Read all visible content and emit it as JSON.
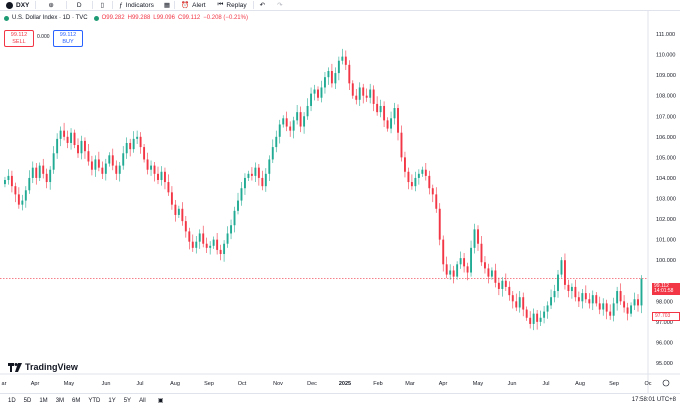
{
  "toolbar": {
    "symbol": "DXY",
    "interval": "D",
    "indicators": "Indicators",
    "alert": "Alert",
    "replay": "Replay"
  },
  "legend": {
    "title": "U.S. Dollar Index · 1D · TVC",
    "o": "O99.282",
    "h": "H99.288",
    "l": "L99.096",
    "c": "C99.112",
    "chg": "−0.208 (−0.21%)"
  },
  "trade": {
    "sell_price": "99.112",
    "sell_label": "SELL",
    "spread": "0.000",
    "buy_price": "99.112",
    "buy_label": "BUY"
  },
  "price_axis": [
    "111.000",
    "110.000",
    "109.000",
    "108.000",
    "107.000",
    "106.000",
    "105.000",
    "104.000",
    "103.000",
    "102.000",
    "101.000",
    "100.000",
    "98.000",
    "97.000",
    "96.000",
    "95.000"
  ],
  "current_price": "99.112",
  "current_countdown": "14:01:58",
  "blue_tag": "97.703",
  "time_axis": [
    "ar",
    "Apr",
    "May",
    "Jun",
    "Jul",
    "Aug",
    "Sep",
    "Oct",
    "Nov",
    "Dec",
    "2025",
    "Feb",
    "Mar",
    "Apr",
    "May",
    "Jun",
    "Jul",
    "Aug",
    "Sep",
    "Oc"
  ],
  "logo": "TradingView",
  "ranges": [
    "1D",
    "5D",
    "1M",
    "3M",
    "6M",
    "YTD",
    "1Y",
    "5Y",
    "All"
  ],
  "clock": "17:58:01 UTC+8",
  "colors": {
    "up": "#22ab94",
    "down": "#f23645",
    "accent": "#2962ff"
  },
  "chart_data": {
    "type": "candlestick",
    "ylim": [
      95,
      111
    ],
    "closes": [
      103.9,
      104.1,
      103.6,
      103.2,
      102.7,
      102.9,
      103.4,
      104.0,
      104.5,
      104.0,
      104.6,
      104.2,
      103.8,
      104.4,
      105.2,
      105.9,
      106.3,
      106.0,
      105.7,
      106.2,
      105.6,
      105.2,
      105.8,
      105.3,
      104.8,
      104.4,
      104.9,
      104.5,
      104.2,
      104.7,
      105.1,
      104.6,
      104.2,
      104.6,
      105.2,
      105.7,
      105.4,
      105.9,
      106.0,
      105.5,
      104.9,
      104.4,
      104.6,
      104.2,
      103.9,
      104.3,
      103.8,
      103.3,
      102.7,
      102.2,
      102.5,
      101.9,
      101.4,
      100.9,
      100.6,
      100.9,
      101.3,
      100.8,
      100.6,
      100.7,
      101.0,
      100.5,
      100.3,
      100.8,
      101.3,
      101.7,
      102.4,
      102.9,
      103.5,
      104.0,
      104.2,
      104.1,
      104.5,
      104.0,
      103.6,
      104.2,
      104.9,
      105.5,
      106.0,
      106.6,
      106.9,
      106.5,
      106.3,
      106.8,
      107.2,
      106.5,
      107.0,
      107.5,
      108.1,
      108.3,
      107.9,
      108.4,
      108.9,
      109.2,
      108.6,
      109.1,
      109.7,
      109.9,
      109.5,
      108.6,
      108.0,
      107.8,
      108.4,
      108.0,
      107.9,
      108.3,
      107.6,
      107.2,
      107.5,
      106.8,
      106.4,
      106.9,
      107.4,
      106.2,
      105.0,
      104.3,
      103.8,
      103.6,
      104.0,
      104.2,
      104.4,
      104.1,
      103.5,
      103.2,
      102.5,
      101.0,
      99.8,
      99.3,
      99.5,
      99.2,
      99.8,
      100.1,
      99.7,
      99.4,
      100.6,
      101.5,
      100.8,
      99.9,
      99.6,
      99.2,
      99.5,
      98.9,
      98.6,
      99.0,
      98.7,
      98.3,
      98.0,
      97.7,
      98.2,
      97.6,
      97.2,
      96.9,
      97.4,
      97.0,
      97.2,
      97.5,
      97.8,
      98.2,
      98.5,
      99.3,
      100.0,
      98.8,
      98.5,
      98.7,
      98.2,
      98.0,
      98.4,
      98.1,
      97.9,
      98.3,
      97.9,
      97.6,
      97.9,
      97.5,
      97.3,
      97.9,
      98.5,
      98.0,
      97.7,
      97.4,
      97.8,
      98.1,
      97.8,
      99.1
    ]
  }
}
